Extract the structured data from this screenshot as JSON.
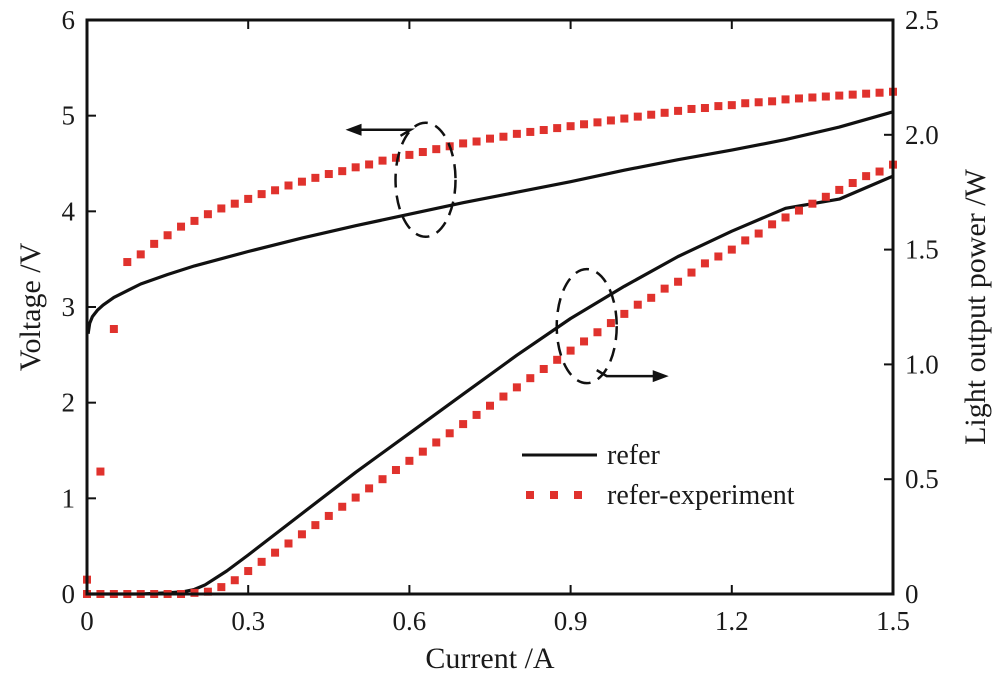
{
  "chart_data": {
    "type": "line",
    "xlabel": "Current /A",
    "ylabel_left": "Voltage /V",
    "ylabel_right": "Light output power /W",
    "xlim": [
      0,
      1.5
    ],
    "ylim_left": [
      0,
      6
    ],
    "ylim_right": [
      0,
      2.5
    ],
    "xticks": [
      0,
      0.3,
      0.6,
      0.9,
      1.2,
      1.5
    ],
    "xtick_labels": [
      "0",
      "0.3",
      "0.6",
      "0.9",
      "1.2",
      "1.5"
    ],
    "yticks_left": [
      0,
      1,
      2,
      3,
      4,
      5,
      6
    ],
    "ytick_labels_left": [
      "0",
      "1",
      "2",
      "3",
      "4",
      "5",
      "6"
    ],
    "yticks_right": [
      0,
      0.5,
      1.0,
      1.5,
      2.0,
      2.5
    ],
    "ytick_labels_right": [
      "0",
      "0.5",
      "1.0",
      "1.5",
      "2.0",
      "2.5"
    ],
    "grid": false,
    "legend_position": "lower-right",
    "legend": [
      {
        "label": "refer",
        "style": "solid-line",
        "color": "#111111"
      },
      {
        "label": "refer-experiment",
        "style": "square-markers",
        "color": "#e0322d"
      }
    ],
    "series": [
      {
        "name": "refer",
        "axis": "left",
        "style": "line",
        "color": "#111111",
        "x": [
          0.002,
          0.005,
          0.01,
          0.02,
          0.03,
          0.05,
          0.075,
          0.1,
          0.15,
          0.2,
          0.3,
          0.4,
          0.5,
          0.6,
          0.7,
          0.8,
          0.9,
          1.0,
          1.1,
          1.2,
          1.3,
          1.4,
          1.5
        ],
        "y": [
          2.72,
          2.83,
          2.9,
          2.97,
          3.02,
          3.1,
          3.17,
          3.24,
          3.34,
          3.43,
          3.58,
          3.72,
          3.85,
          3.97,
          4.09,
          4.2,
          4.31,
          4.43,
          4.54,
          4.64,
          4.75,
          4.88,
          5.04
        ]
      },
      {
        "name": "refer",
        "axis": "right",
        "style": "line",
        "color": "#111111",
        "x": [
          0,
          0.1,
          0.15,
          0.18,
          0.2,
          0.22,
          0.24,
          0.26,
          0.3,
          0.4,
          0.5,
          0.6,
          0.7,
          0.8,
          0.9,
          1.0,
          1.1,
          1.2,
          1.3,
          1.4,
          1.5
        ],
        "y": [
          0,
          0,
          0.005,
          0.01,
          0.02,
          0.04,
          0.07,
          0.1,
          0.17,
          0.35,
          0.53,
          0.7,
          0.87,
          1.04,
          1.2,
          1.34,
          1.47,
          1.58,
          1.68,
          1.72,
          1.82
        ]
      },
      {
        "name": "refer-experiment",
        "axis": "left",
        "style": "markers",
        "color": "#e0322d",
        "x": [
          0.0,
          0.025,
          0.05,
          0.075,
          0.1,
          0.125,
          0.15,
          0.175,
          0.2,
          0.225,
          0.25,
          0.275,
          0.3,
          0.325,
          0.35,
          0.375,
          0.4,
          0.425,
          0.45,
          0.475,
          0.5,
          0.525,
          0.55,
          0.575,
          0.6,
          0.625,
          0.65,
          0.675,
          0.7,
          0.725,
          0.75,
          0.775,
          0.8,
          0.825,
          0.85,
          0.875,
          0.9,
          0.925,
          0.95,
          0.975,
          1.0,
          1.025,
          1.05,
          1.075,
          1.1,
          1.125,
          1.15,
          1.175,
          1.2,
          1.225,
          1.25,
          1.275,
          1.3,
          1.325,
          1.35,
          1.375,
          1.4,
          1.425,
          1.45,
          1.475,
          1.5
        ],
        "y": [
          0.15,
          1.28,
          2.77,
          3.47,
          3.55,
          3.66,
          3.75,
          3.84,
          3.9,
          3.97,
          4.03,
          4.08,
          4.13,
          4.18,
          4.22,
          4.27,
          4.31,
          4.35,
          4.39,
          4.42,
          4.46,
          4.49,
          4.53,
          4.56,
          4.59,
          4.62,
          4.65,
          4.68,
          4.71,
          4.73,
          4.76,
          4.78,
          4.81,
          4.83,
          4.85,
          4.87,
          4.89,
          4.91,
          4.93,
          4.95,
          4.97,
          4.99,
          5.01,
          5.03,
          5.05,
          5.07,
          5.08,
          5.1,
          5.11,
          5.13,
          5.14,
          5.15,
          5.17,
          5.18,
          5.19,
          5.2,
          5.21,
          5.22,
          5.23,
          5.24,
          5.25
        ]
      },
      {
        "name": "refer-experiment",
        "axis": "right",
        "style": "markers",
        "color": "#e0322d",
        "x": [
          0.0,
          0.025,
          0.05,
          0.075,
          0.1,
          0.125,
          0.15,
          0.175,
          0.2,
          0.225,
          0.25,
          0.275,
          0.3,
          0.325,
          0.35,
          0.375,
          0.4,
          0.425,
          0.45,
          0.475,
          0.5,
          0.525,
          0.55,
          0.575,
          0.6,
          0.625,
          0.65,
          0.675,
          0.7,
          0.725,
          0.75,
          0.775,
          0.8,
          0.825,
          0.85,
          0.875,
          0.9,
          0.925,
          0.95,
          0.975,
          1.0,
          1.025,
          1.05,
          1.075,
          1.1,
          1.125,
          1.15,
          1.175,
          1.2,
          1.225,
          1.25,
          1.275,
          1.3,
          1.325,
          1.35,
          1.375,
          1.4,
          1.425,
          1.45,
          1.475,
          1.5
        ],
        "y": [
          0.0,
          0.0,
          0.0,
          0.0,
          0.0,
          0.0,
          0.0,
          0.0,
          0.005,
          0.01,
          0.03,
          0.06,
          0.1,
          0.14,
          0.18,
          0.22,
          0.26,
          0.3,
          0.34,
          0.38,
          0.42,
          0.46,
          0.5,
          0.54,
          0.58,
          0.62,
          0.66,
          0.7,
          0.74,
          0.78,
          0.82,
          0.86,
          0.9,
          0.94,
          0.98,
          1.02,
          1.06,
          1.1,
          1.14,
          1.18,
          1.22,
          1.26,
          1.29,
          1.33,
          1.36,
          1.4,
          1.44,
          1.47,
          1.5,
          1.54,
          1.57,
          1.61,
          1.64,
          1.67,
          1.7,
          1.73,
          1.76,
          1.79,
          1.82,
          1.84,
          1.87
        ]
      }
    ],
    "annotations": [
      {
        "type": "dashed-ellipse-with-arrow",
        "points_to": "left-axis",
        "x": 0.63,
        "y_left": 4.33
      },
      {
        "type": "dashed-ellipse-with-arrow",
        "points_to": "right-axis",
        "x": 0.93,
        "y_left": 2.8
      }
    ]
  }
}
